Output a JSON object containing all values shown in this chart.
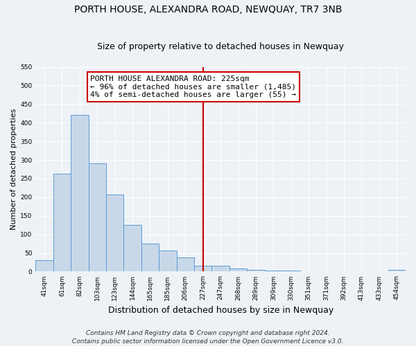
{
  "title": "PORTH HOUSE, ALEXANDRA ROAD, NEWQUAY, TR7 3NB",
  "subtitle": "Size of property relative to detached houses in Newquay",
  "xlabel": "Distribution of detached houses by size in Newquay",
  "ylabel": "Number of detached properties",
  "bar_labels": [
    "41sqm",
    "61sqm",
    "82sqm",
    "103sqm",
    "123sqm",
    "144sqm",
    "165sqm",
    "185sqm",
    "206sqm",
    "227sqm",
    "247sqm",
    "268sqm",
    "289sqm",
    "309sqm",
    "330sqm",
    "351sqm",
    "371sqm",
    "392sqm",
    "413sqm",
    "433sqm",
    "454sqm"
  ],
  "bar_values": [
    30,
    262,
    420,
    290,
    207,
    126,
    75,
    57,
    38,
    15,
    15,
    8,
    5,
    3,
    2,
    1,
    1,
    1,
    1,
    0,
    4
  ],
  "bar_color": "#c8d8e8",
  "bar_edge_color": "#5b9bd5",
  "ylim": [
    0,
    550
  ],
  "vline_color": "#cc0000",
  "annotation_line1": "PORTH HOUSE ALEXANDRA ROAD: 225sqm",
  "annotation_line2": "← 96% of detached houses are smaller (1,485)",
  "annotation_line3": "4% of semi-detached houses are larger (55) →",
  "annotation_box_edge_color": "#cc0000",
  "annotation_box_face_color": "#ffffff",
  "footer_line1": "Contains HM Land Registry data © Crown copyright and database right 2024.",
  "footer_line2": "Contains public sector information licensed under the Open Government Licence v3.0.",
  "background_color": "#eef2f7",
  "grid_color": "#ffffff",
  "title_fontsize": 10,
  "subtitle_fontsize": 9,
  "ylabel_fontsize": 8,
  "xlabel_fontsize": 9,
  "tick_fontsize": 6.5,
  "annotation_fontsize": 8,
  "footer_fontsize": 6.5
}
